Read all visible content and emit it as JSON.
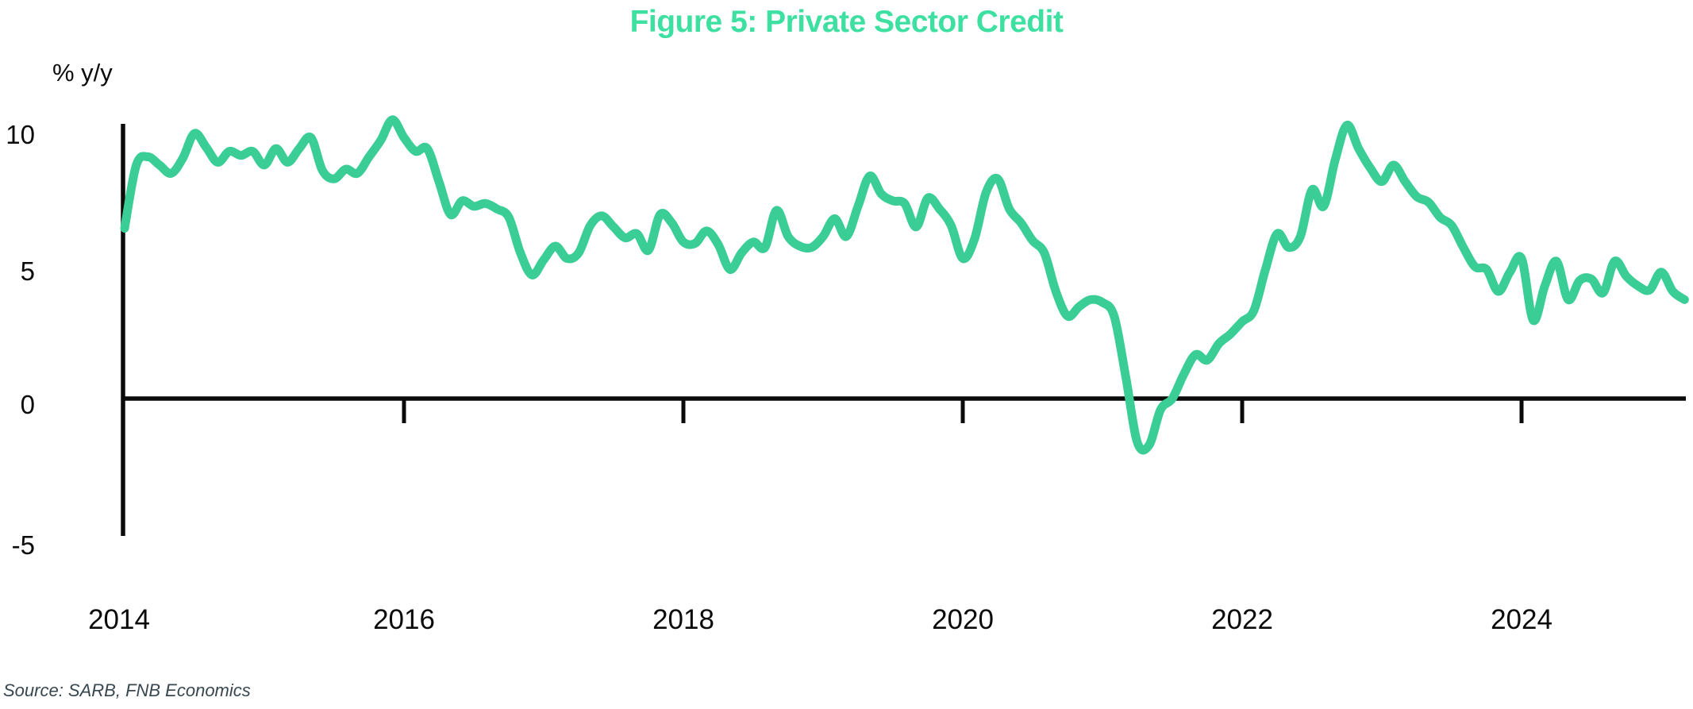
{
  "title": "Figure 5: Private Sector Credit",
  "y_axis_label": "% y/y",
  "source": "Source: SARB, FNB Economics",
  "colors": {
    "accent_green": "#3ee0a1",
    "line_green": "#3bcd96",
    "axis_black": "#0b0b0b",
    "source_gray": "#37474f"
  },
  "chart_data": {
    "type": "line",
    "title": "Figure 5: Private Sector Credit",
    "ylabel": "% y/y",
    "xlabel": "",
    "grid": false,
    "legend_position": "none",
    "ylim": [
      -5,
      10
    ],
    "y_ticks": [
      -5,
      0,
      5,
      10
    ],
    "y_tick_labels": [
      "-5",
      "0",
      "5",
      "10"
    ],
    "x_tick_labels": [
      "2014",
      "2016",
      "2018",
      "2020",
      "2022",
      "2024"
    ],
    "x_tick_mark_years": [
      2016,
      2018,
      2020,
      2022,
      2024
    ],
    "x_start": "2014-01",
    "x_end": "2025-03",
    "x_frequency": "monthly",
    "series": [
      {
        "name": "Private sector credit",
        "values": [
          6.2,
          8.5,
          8.8,
          8.5,
          8.2,
          8.75,
          9.65,
          9.15,
          8.6,
          9.0,
          8.85,
          9.0,
          8.5,
          9.1,
          8.6,
          9.1,
          9.5,
          8.3,
          8.0,
          8.35,
          8.2,
          8.8,
          9.4,
          10.15,
          9.5,
          9.0,
          9.1,
          7.9,
          6.7,
          7.2,
          7.0,
          7.1,
          6.9,
          6.6,
          5.3,
          4.5,
          5.05,
          5.55,
          5.1,
          5.3,
          6.3,
          6.65,
          6.25,
          5.85,
          6.0,
          5.4,
          6.7,
          6.4,
          5.7,
          5.65,
          6.1,
          5.6,
          4.7,
          5.3,
          5.7,
          5.5,
          6.85,
          5.9,
          5.55,
          5.5,
          5.9,
          6.55,
          5.9,
          7.0,
          8.1,
          7.45,
          7.2,
          7.1,
          6.25,
          7.3,
          6.9,
          6.3,
          5.1,
          5.8,
          7.5,
          8.0,
          6.9,
          6.4,
          5.75,
          5.3,
          3.9,
          3.0,
          3.35,
          3.6,
          3.5,
          3.0,
          0.8,
          -1.6,
          -1.7,
          -0.4,
          0.0,
          0.9,
          1.6,
          1.4,
          2.0,
          2.35,
          2.8,
          3.2,
          4.7,
          6.0,
          5.5,
          5.9,
          7.6,
          7.0,
          8.7,
          9.95,
          9.1,
          8.4,
          7.9,
          8.5,
          7.9,
          7.35,
          7.15,
          6.6,
          6.3,
          5.5,
          4.8,
          4.7,
          3.9,
          4.6,
          5.1,
          2.85,
          4.1,
          5.0,
          3.6,
          4.3,
          4.35,
          3.85,
          5.0,
          4.45,
          4.1,
          3.95,
          4.6,
          3.9,
          3.6
        ]
      }
    ]
  }
}
